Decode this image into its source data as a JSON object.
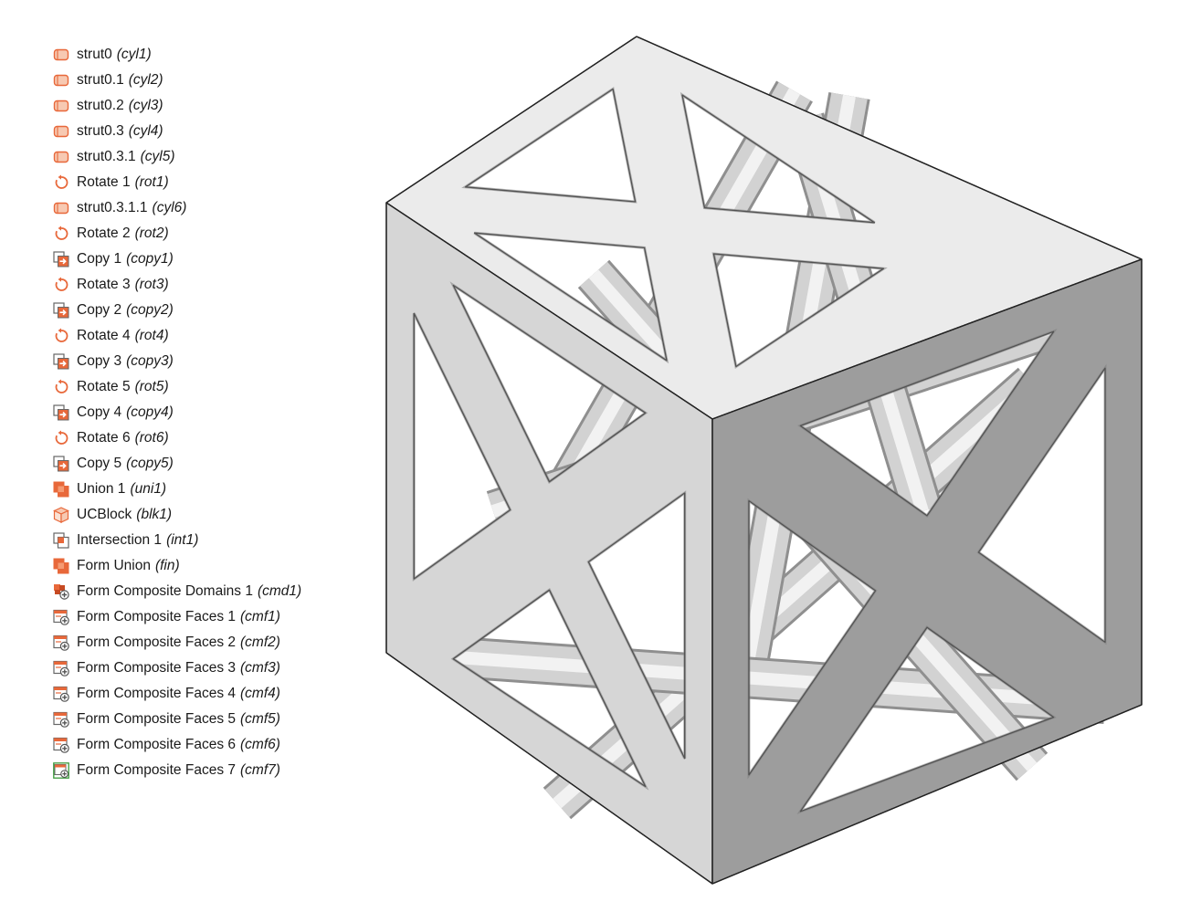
{
  "tree": {
    "nodes": [
      {
        "label": "strut0",
        "tag": "(cyl1)",
        "icon": "cylinder-icon"
      },
      {
        "label": "strut0.1",
        "tag": "(cyl2)",
        "icon": "cylinder-icon"
      },
      {
        "label": "strut0.2",
        "tag": "(cyl3)",
        "icon": "cylinder-icon"
      },
      {
        "label": "strut0.3",
        "tag": "(cyl4)",
        "icon": "cylinder-icon"
      },
      {
        "label": "strut0.3.1",
        "tag": "(cyl5)",
        "icon": "cylinder-icon"
      },
      {
        "label": "Rotate 1",
        "tag": "(rot1)",
        "icon": "rotate-icon"
      },
      {
        "label": "strut0.3.1.1",
        "tag": "(cyl6)",
        "icon": "cylinder-icon"
      },
      {
        "label": "Rotate 2",
        "tag": "(rot2)",
        "icon": "rotate-icon"
      },
      {
        "label": "Copy 1",
        "tag": "(copy1)",
        "icon": "copy-icon"
      },
      {
        "label": "Rotate 3",
        "tag": "(rot3)",
        "icon": "rotate-icon"
      },
      {
        "label": "Copy 2",
        "tag": "(copy2)",
        "icon": "copy-icon"
      },
      {
        "label": "Rotate 4",
        "tag": "(rot4)",
        "icon": "rotate-icon"
      },
      {
        "label": "Copy 3",
        "tag": "(copy3)",
        "icon": "copy-icon"
      },
      {
        "label": "Rotate 5",
        "tag": "(rot5)",
        "icon": "rotate-icon"
      },
      {
        "label": "Copy 4",
        "tag": "(copy4)",
        "icon": "copy-icon"
      },
      {
        "label": "Rotate 6",
        "tag": "(rot6)",
        "icon": "rotate-icon"
      },
      {
        "label": "Copy 5",
        "tag": "(copy5)",
        "icon": "copy-icon"
      },
      {
        "label": "Union 1",
        "tag": "(uni1)",
        "icon": "union-icon"
      },
      {
        "label": "UCBlock",
        "tag": "(blk1)",
        "icon": "block-icon"
      },
      {
        "label": "Intersection 1",
        "tag": "(int1)",
        "icon": "intersection-icon"
      },
      {
        "label": "Form Union",
        "tag": "(fin)",
        "icon": "form-union-icon"
      },
      {
        "label": "Form Composite Domains 1",
        "tag": "(cmd1)",
        "icon": "composite-domains-icon"
      },
      {
        "label": "Form Composite Faces 1",
        "tag": "(cmf1)",
        "icon": "composite-faces-icon"
      },
      {
        "label": "Form Composite Faces 2",
        "tag": "(cmf2)",
        "icon": "composite-faces-icon"
      },
      {
        "label": "Form Composite Faces 3",
        "tag": "(cmf3)",
        "icon": "composite-faces-icon"
      },
      {
        "label": "Form Composite Faces 4",
        "tag": "(cmf4)",
        "icon": "composite-faces-icon"
      },
      {
        "label": "Form Composite Faces 5",
        "tag": "(cmf5)",
        "icon": "composite-faces-icon"
      },
      {
        "label": "Form Composite Faces 6",
        "tag": "(cmf6)",
        "icon": "composite-faces-icon"
      },
      {
        "label": "Form Composite Faces 7",
        "tag": "(cmf7)",
        "icon": "composite-faces-green-icon"
      }
    ]
  },
  "colors": {
    "accent": "#e8683a",
    "accent_fill": "#f7c9b2",
    "green": "#3a9a3a",
    "face_left": "#d6d6d6",
    "face_top": "#ebebeb",
    "face_right": "#9d9d9d"
  }
}
